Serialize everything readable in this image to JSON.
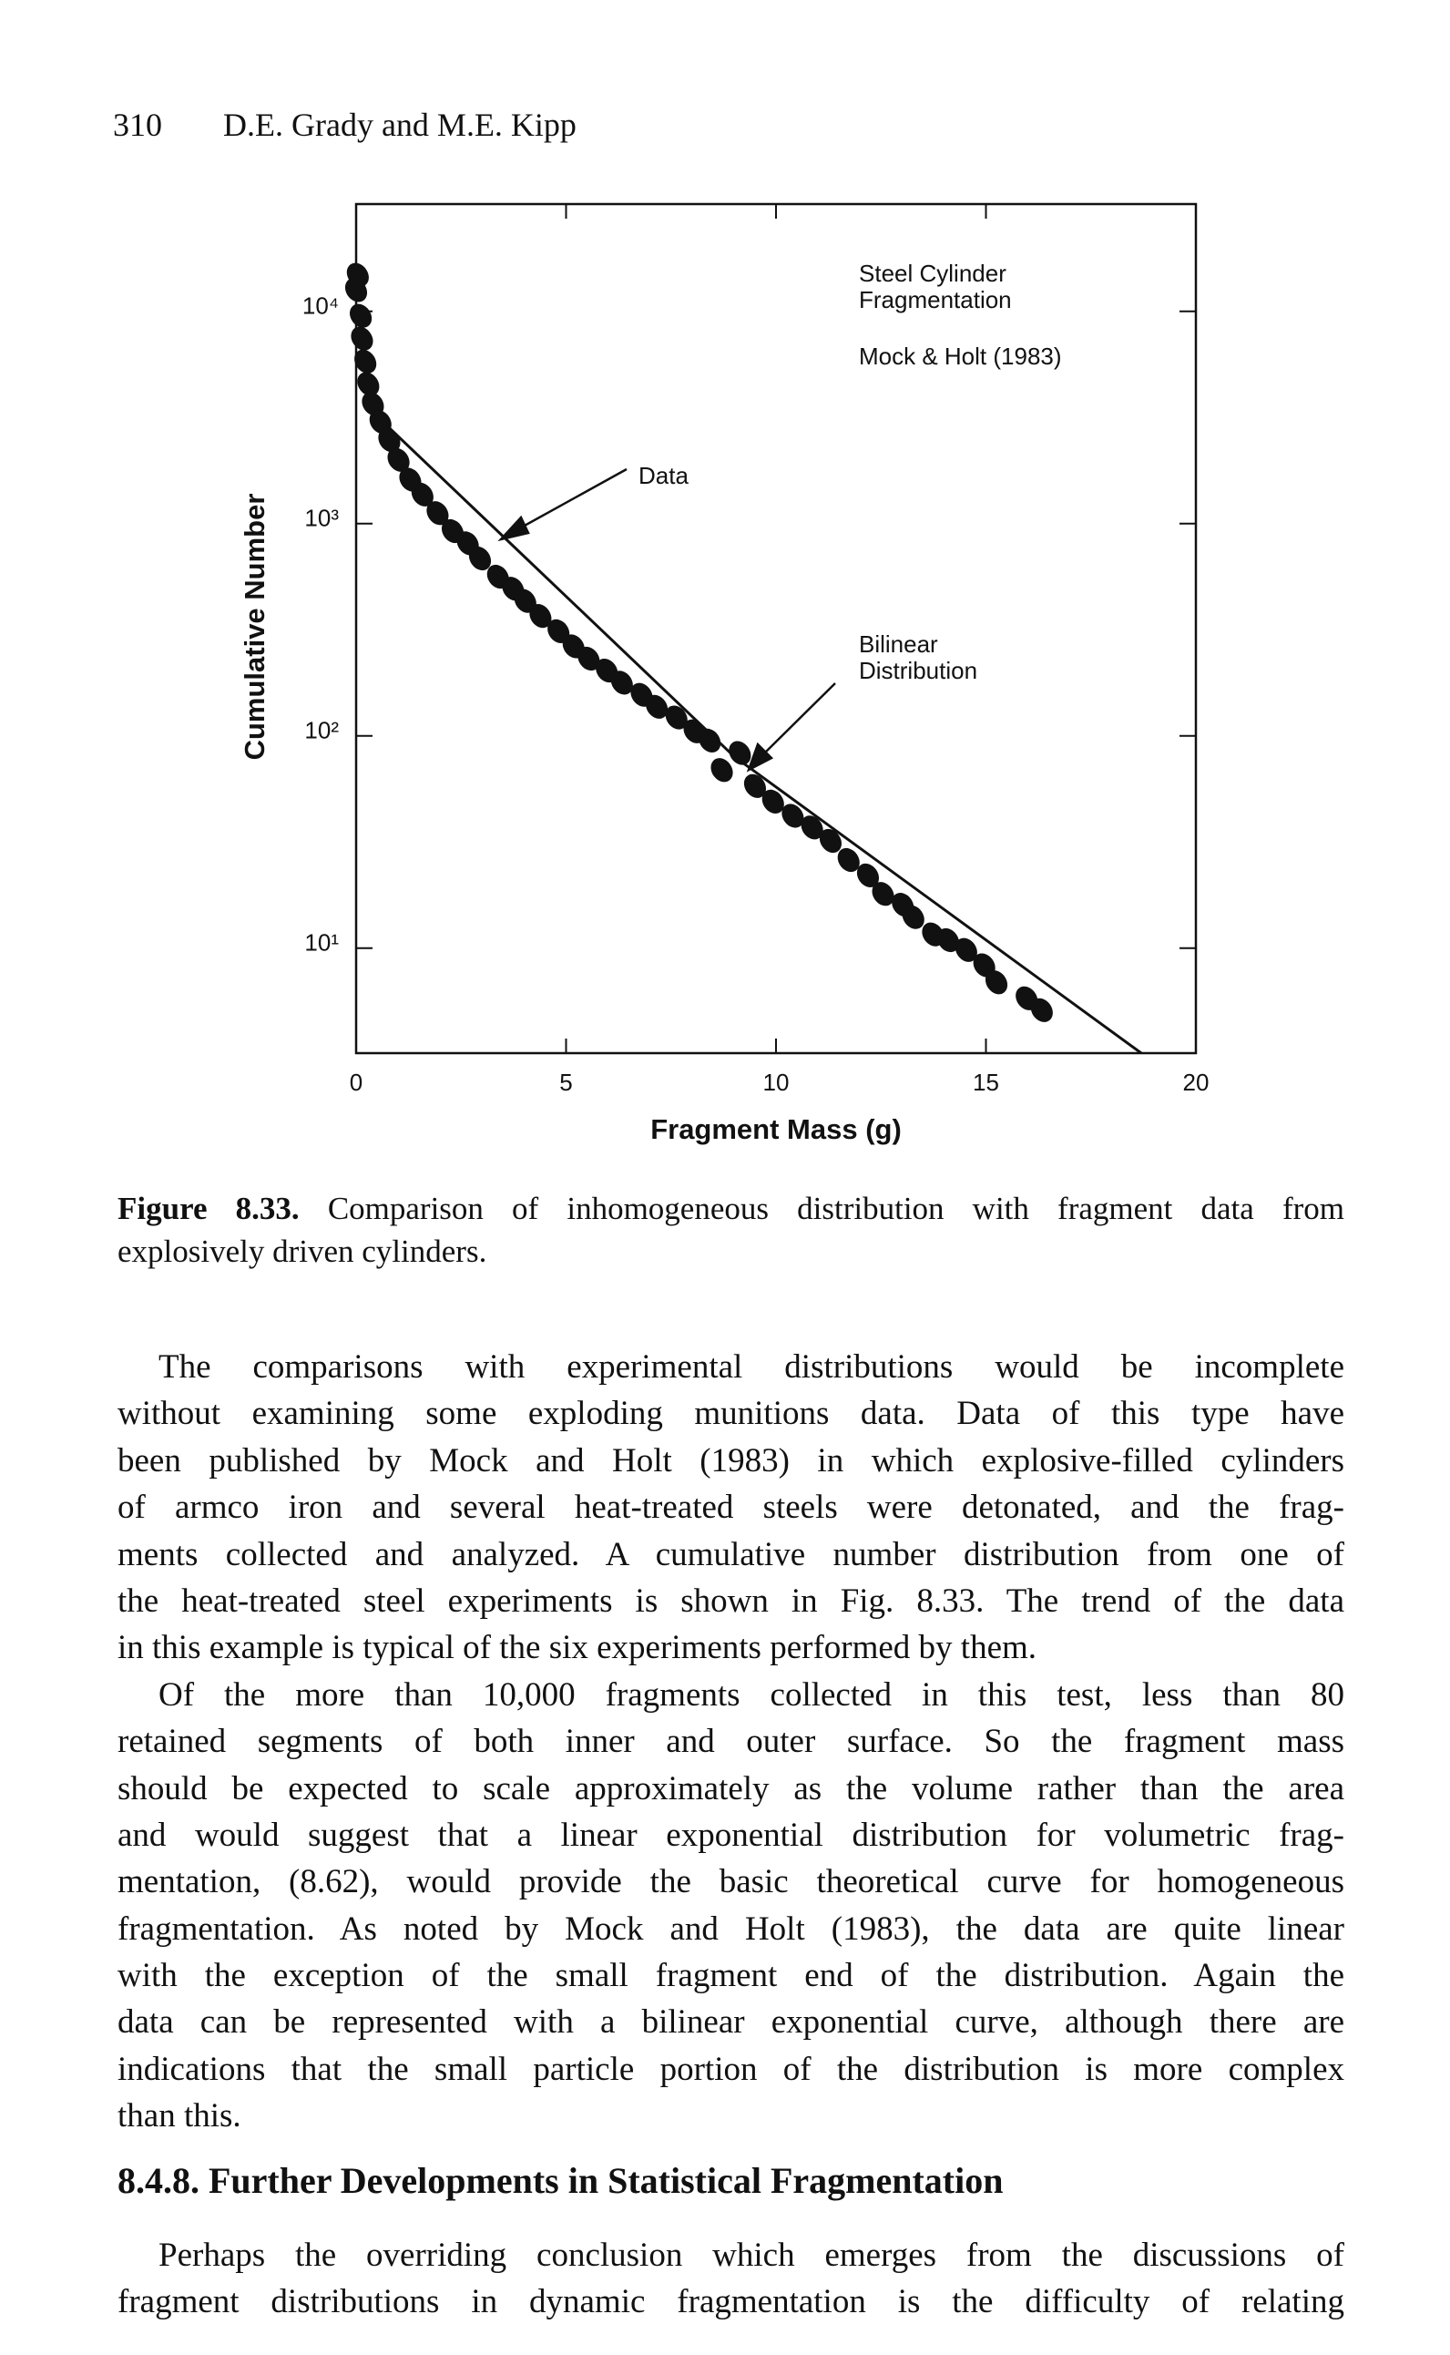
{
  "header": {
    "page": "310",
    "authors": "D.E. Grady and M.E. Kipp"
  },
  "chart_data": {
    "type": "scatter",
    "xlabel": "Fragment Mass (g)",
    "ylabel": "Cumulative Number",
    "xlim": [
      0,
      20
    ],
    "xticks": [
      0,
      5,
      10,
      15,
      20
    ],
    "ylim": [
      3.2,
      32000
    ],
    "yscale": "log",
    "yticks": [
      {
        "value": 10,
        "label": "10¹"
      },
      {
        "value": 100,
        "label": "10²"
      },
      {
        "value": 1000,
        "label": "10³"
      },
      {
        "value": 10000,
        "label": "10⁴"
      }
    ],
    "series": [
      {
        "mode": "markers",
        "color": "#111111",
        "x": [
          0.04,
          0,
          0.11,
          0.14,
          0.22,
          0.29,
          0.4,
          0.58,
          0.79,
          1.01,
          1.29,
          1.58,
          1.94,
          2.3,
          2.66,
          2.95,
          3.38,
          3.74,
          4.03,
          4.39,
          4.82,
          5.18,
          5.54,
          5.97,
          6.33,
          6.8,
          7.16,
          7.63,
          8.06,
          8.42,
          8.71,
          9.14,
          9.5,
          9.93,
          10.4,
          10.86,
          11.3,
          11.73,
          12.19,
          12.55,
          13.02,
          13.27,
          13.74,
          14.1,
          14.53,
          14.96,
          15.25,
          15.97,
          16.33
        ],
        "values": [
          14840,
          12590,
          9520,
          7440,
          5800,
          4540,
          3660,
          3010,
          2470,
          1995,
          1610,
          1370,
          1120,
          921,
          807,
          685,
          562,
          493,
          432,
          367,
          311,
          264,
          231,
          203,
          178,
          156,
          137,
          122,
          105,
          95,
          69,
          83,
          58,
          49,
          42,
          37,
          32,
          26,
          22,
          18,
          16,
          14,
          11.6,
          10.9,
          9.8,
          8.3,
          6.9,
          5.8,
          5.1
        ]
      },
      {
        "mode": "line",
        "color": "#111111",
        "x": [
          0.5,
          9.0,
          18.7
        ],
        "values": [
          3200,
          80,
          3.2
        ]
      }
    ],
    "annotations": [
      "Steel Cylinder",
      "Fragmentation",
      "Mock & Holt (1983)",
      "Data",
      "Bilinear",
      "Distribution"
    ]
  },
  "caption": {
    "label": "Figure 8.33.",
    "lines": [
      "Comparison of inhomogeneous distribution with fragment data from",
      "explosively driven cylinders."
    ]
  },
  "paragraphs": [
    [
      "The comparisons with experimental distributions would be incomplete",
      "without examining some exploding munitions data. Data of this type have",
      "been published by Mock and Holt (1983) in which explosive-filled cylinders",
      "of armco iron and several heat-treated steels were detonated, and the frag-",
      "ments collected and analyzed. A cumulative number distribution from one of",
      "the heat-treated steel experiments is shown in Fig. 8.33. The trend of the data",
      "in this example is typical of the six experiments performed by them."
    ],
    [
      "Of the more than 10,000 fragments collected in this test, less than 80",
      "retained segments of both inner and outer surface. So the fragment mass",
      "should be expected to scale approximately as the volume rather than the area",
      "and would suggest that a linear exponential distribution for volumetric frag-",
      "mentation, (8.62), would provide the basic theoretical curve for homogeneous",
      "fragmentation. As noted by Mock and Holt (1983), the data are quite linear",
      "with the exception of the small fragment end of the distribution. Again the",
      "data can be represented with a bilinear exponential curve, although there are",
      "indications that the small particle portion of the distribution is more complex",
      "than this."
    ]
  ],
  "heading": "8.4.8. Further Developments in Statistical Fragmentation",
  "paragraphs_after": [
    [
      "Perhaps the overriding conclusion which emerges from the discussions of",
      "fragment distributions in dynamic fragmentation is the difficulty of relating"
    ]
  ]
}
